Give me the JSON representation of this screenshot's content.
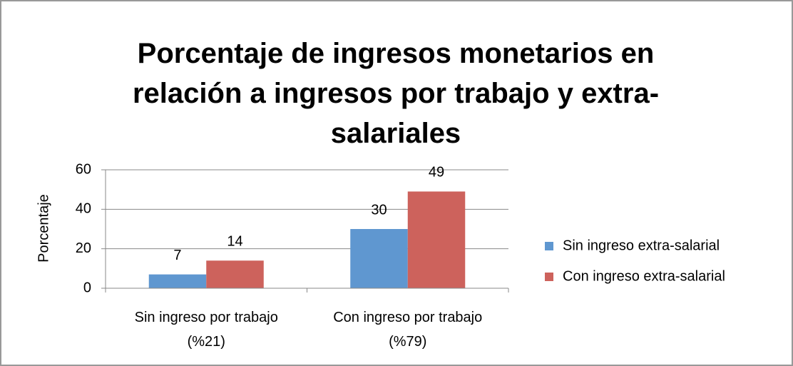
{
  "chart_data": {
    "type": "bar",
    "title": "Porcentaje de ingresos monetarios en relación a ingresos por trabajo y extra- salariales",
    "y_label": "Porcentaje",
    "categories": [
      "Sin ingreso por trabajo (%21)",
      "Con ingreso por trabajo (%79)"
    ],
    "series": [
      {
        "name": "Sin ingreso extra-salarial",
        "color": "#5f97d0",
        "values": [
          7,
          30
        ]
      },
      {
        "name": "Con ingreso extra-salarial",
        "color": "#cd625c",
        "values": [
          14,
          49
        ]
      }
    ],
    "ylim": [
      0,
      60
    ],
    "yticks": [
      0,
      20,
      40,
      60
    ],
    "grid": true,
    "legend": "right"
  }
}
